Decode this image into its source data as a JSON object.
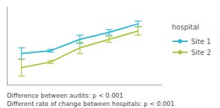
{
  "chart_data": {
    "type": "line",
    "series": [
      {
        "name": "Site 1",
        "color": "#29b8d8",
        "x": [
          1,
          2,
          3,
          4,
          5
        ],
        "values": [
          0.72,
          0.74,
          0.82,
          0.87,
          0.93
        ],
        "errors": [
          0.04,
          0.01,
          0.03,
          0.02,
          0.02
        ]
      },
      {
        "name": "Site 2",
        "color": "#a8c83c",
        "x": [
          1,
          2,
          3,
          4,
          5
        ],
        "values": [
          0.62,
          0.66,
          0.76,
          0.82,
          0.88
        ],
        "errors": [
          0.06,
          0.01,
          0.04,
          0.02,
          0.03
        ]
      }
    ],
    "xlim": [
      0.5,
      5.8
    ],
    "ylim": [
      0.5,
      1.05
    ],
    "tick_labels": false,
    "grid": false,
    "legend": "right",
    "legend_title": "hospital",
    "annotations": [
      "Difference between audits: p < 0.001",
      "Different rate of change between hospitals: p < 0.001"
    ]
  }
}
